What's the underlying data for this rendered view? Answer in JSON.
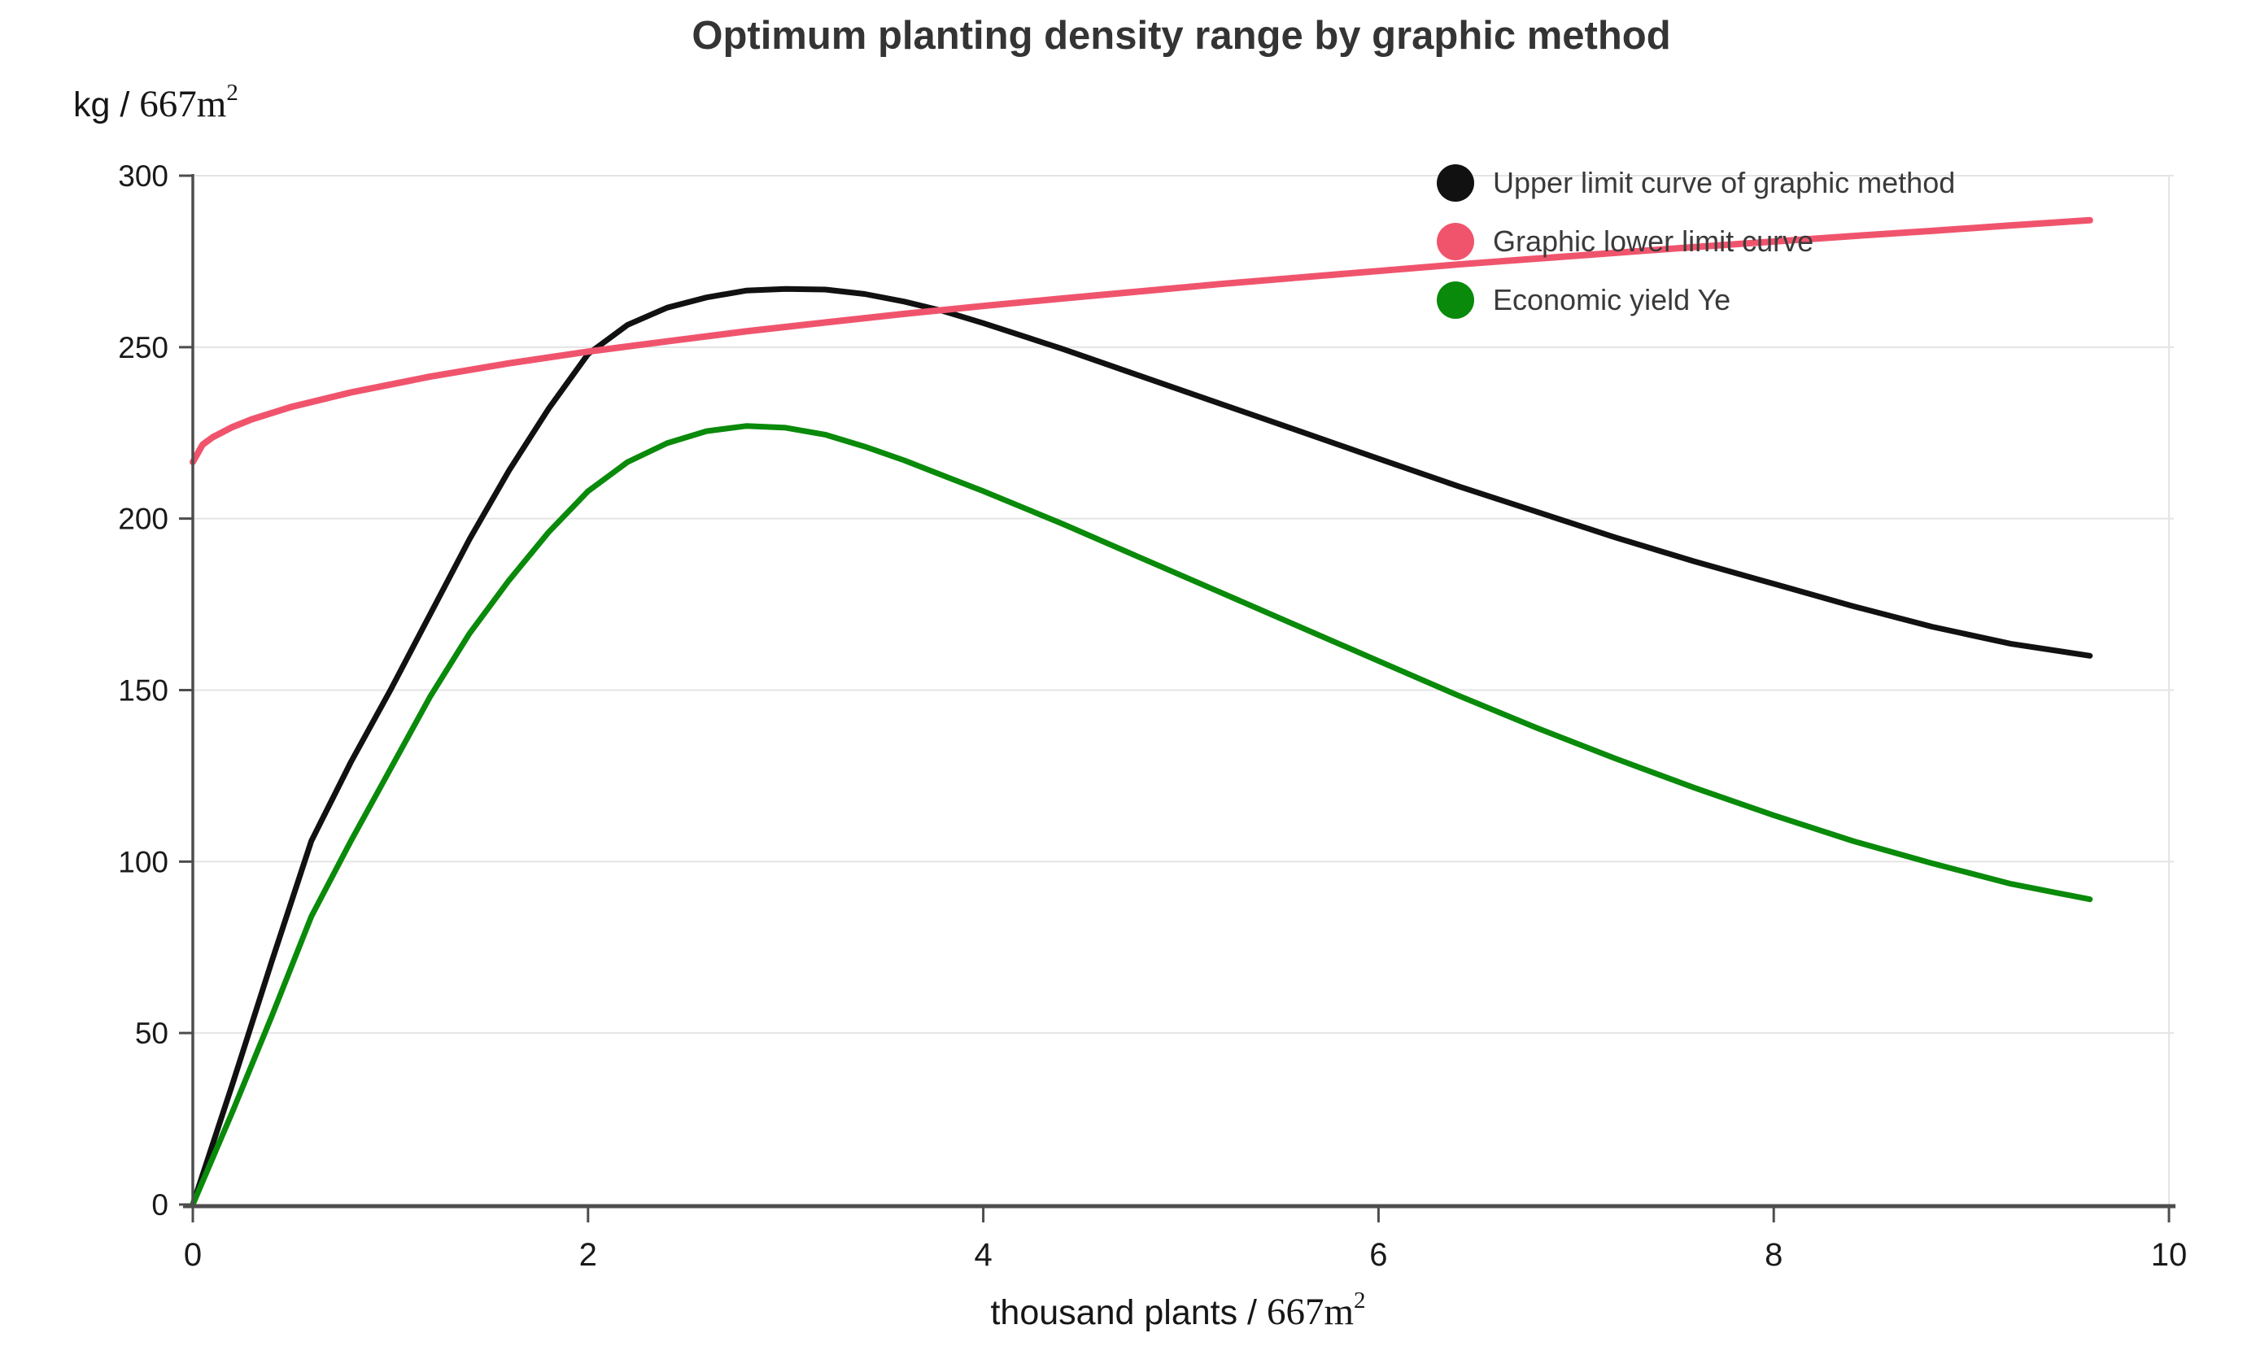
{
  "title": "Optimum planting density range by graphic method",
  "y_axis": {
    "title_prefix": "kg / ",
    "title_unit": "667m",
    "title_sup": "2"
  },
  "x_axis": {
    "title_prefix": "thousand plants / ",
    "title_unit": "667m",
    "title_sup": "2"
  },
  "chart_data": {
    "type": "line",
    "title": "Optimum planting density range by graphic method",
    "xlabel": "thousand plants / 667m2",
    "ylabel": "kg / 667m2",
    "xlim": [
      0,
      10
    ],
    "ylim": [
      0,
      300
    ],
    "x_ticks": [
      0,
      2,
      4,
      6,
      8,
      10
    ],
    "y_ticks": [
      0,
      50,
      100,
      150,
      200,
      250,
      300
    ],
    "grid": "horizontal-only",
    "legend_position": "top-right-inside",
    "notes": "Black upper-limit curve and pink lower-limit curve cross near (2.0, 249) and (3.8, 260.5); black peaks at (3.0, 267); green peaks at (2.8, 227); all curves end at x = 9.6",
    "series": [
      {
        "name": "Upper limit curve of graphic method",
        "color": "#111111",
        "width": 7,
        "x": [
          0,
          0.2,
          0.4,
          0.6,
          0.8,
          1.0,
          1.2,
          1.4,
          1.6,
          1.8,
          2.0,
          2.2,
          2.4,
          2.6,
          2.8,
          3.0,
          3.2,
          3.4,
          3.6,
          3.8,
          4.0,
          4.4,
          4.8,
          5.2,
          5.6,
          6.0,
          6.4,
          6.8,
          7.2,
          7.6,
          8.0,
          8.4,
          8.8,
          9.2,
          9.6
        ],
        "y": [
          0,
          35,
          71,
          106,
          129,
          150,
          172,
          194,
          214,
          232,
          248,
          256.5,
          261.5,
          264.5,
          266.5,
          267,
          266.8,
          265.5,
          263.3,
          260.5,
          257,
          249.5,
          241.5,
          233.5,
          225.5,
          217.5,
          209.5,
          202,
          194.5,
          187.5,
          181,
          174.5,
          168.5,
          163.5,
          160
        ]
      },
      {
        "name": "Graphic lower limit curve",
        "color": "#f0546d",
        "width": 8,
        "x": [
          0,
          0.05,
          0.1,
          0.2,
          0.3,
          0.5,
          0.8,
          1.2,
          1.6,
          2.0,
          2.4,
          2.8,
          3.2,
          3.6,
          4.0,
          4.4,
          4.8,
          5.2,
          5.6,
          6.0,
          6.4,
          6.8,
          7.2,
          7.6,
          8.0,
          8.4,
          8.8,
          9.2,
          9.6
        ],
        "y": [
          216.5,
          221.6,
          223.7,
          226.7,
          229.0,
          232.6,
          236.8,
          241.4,
          245.3,
          248.7,
          251.7,
          254.6,
          257.2,
          259.7,
          262.0,
          264.2,
          266.3,
          268.4,
          270.3,
          272.2,
          274.1,
          275.8,
          277.5,
          279.2,
          280.8,
          282.4,
          283.9,
          285.5,
          287.0
        ]
      },
      {
        "name": "Economic yield Ye",
        "color": "#0a8a0a",
        "width": 7,
        "x": [
          0,
          0.2,
          0.4,
          0.6,
          0.8,
          1.0,
          1.2,
          1.4,
          1.6,
          1.8,
          2.0,
          2.2,
          2.4,
          2.6,
          2.8,
          3.0,
          3.2,
          3.4,
          3.6,
          3.8,
          4.0,
          4.4,
          4.8,
          5.2,
          5.6,
          6.0,
          6.4,
          6.8,
          7.2,
          7.6,
          8.0,
          8.4,
          8.8,
          9.2,
          9.6
        ],
        "y": [
          0,
          27,
          55,
          84,
          106,
          127,
          148,
          166.5,
          182,
          196,
          208,
          216.5,
          222,
          225.5,
          227,
          226.5,
          224.5,
          221,
          217,
          212.5,
          208,
          198.5,
          188.5,
          178.5,
          168.5,
          158.5,
          148.5,
          139,
          130,
          121.5,
          113.5,
          106,
          99.5,
          93.5,
          89
        ]
      }
    ],
    "colors": {
      "grid": "#e4e4e4",
      "axis": "#4d4d4d",
      "tick_label": "#1a1a1a",
      "upper_limit": "#111111",
      "lower_limit": "#f0546d",
      "economic_yield": "#0a8a0a"
    }
  }
}
